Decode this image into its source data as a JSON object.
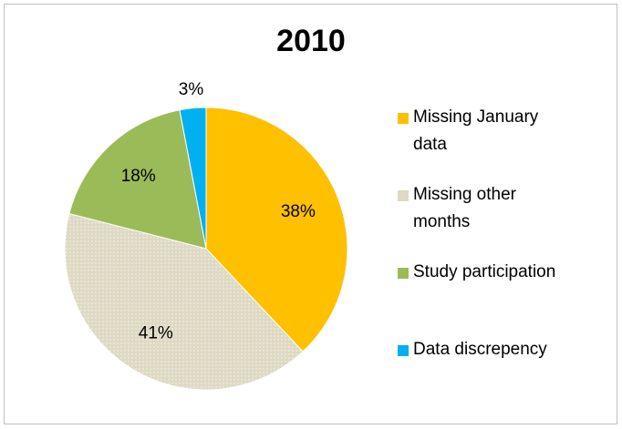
{
  "chart_data": {
    "type": "pie",
    "title": "2010",
    "categories": [
      "Missing January data",
      "Missing other months",
      "Study participation",
      "Data discrepency"
    ],
    "values": [
      38,
      41,
      18,
      3
    ],
    "value_labels": [
      "38%",
      "41%",
      "18%",
      "3%"
    ],
    "colors": [
      "#FFC000",
      "#DDD9C3",
      "#9BBB59",
      "#00B0F0"
    ],
    "legend": "right"
  }
}
